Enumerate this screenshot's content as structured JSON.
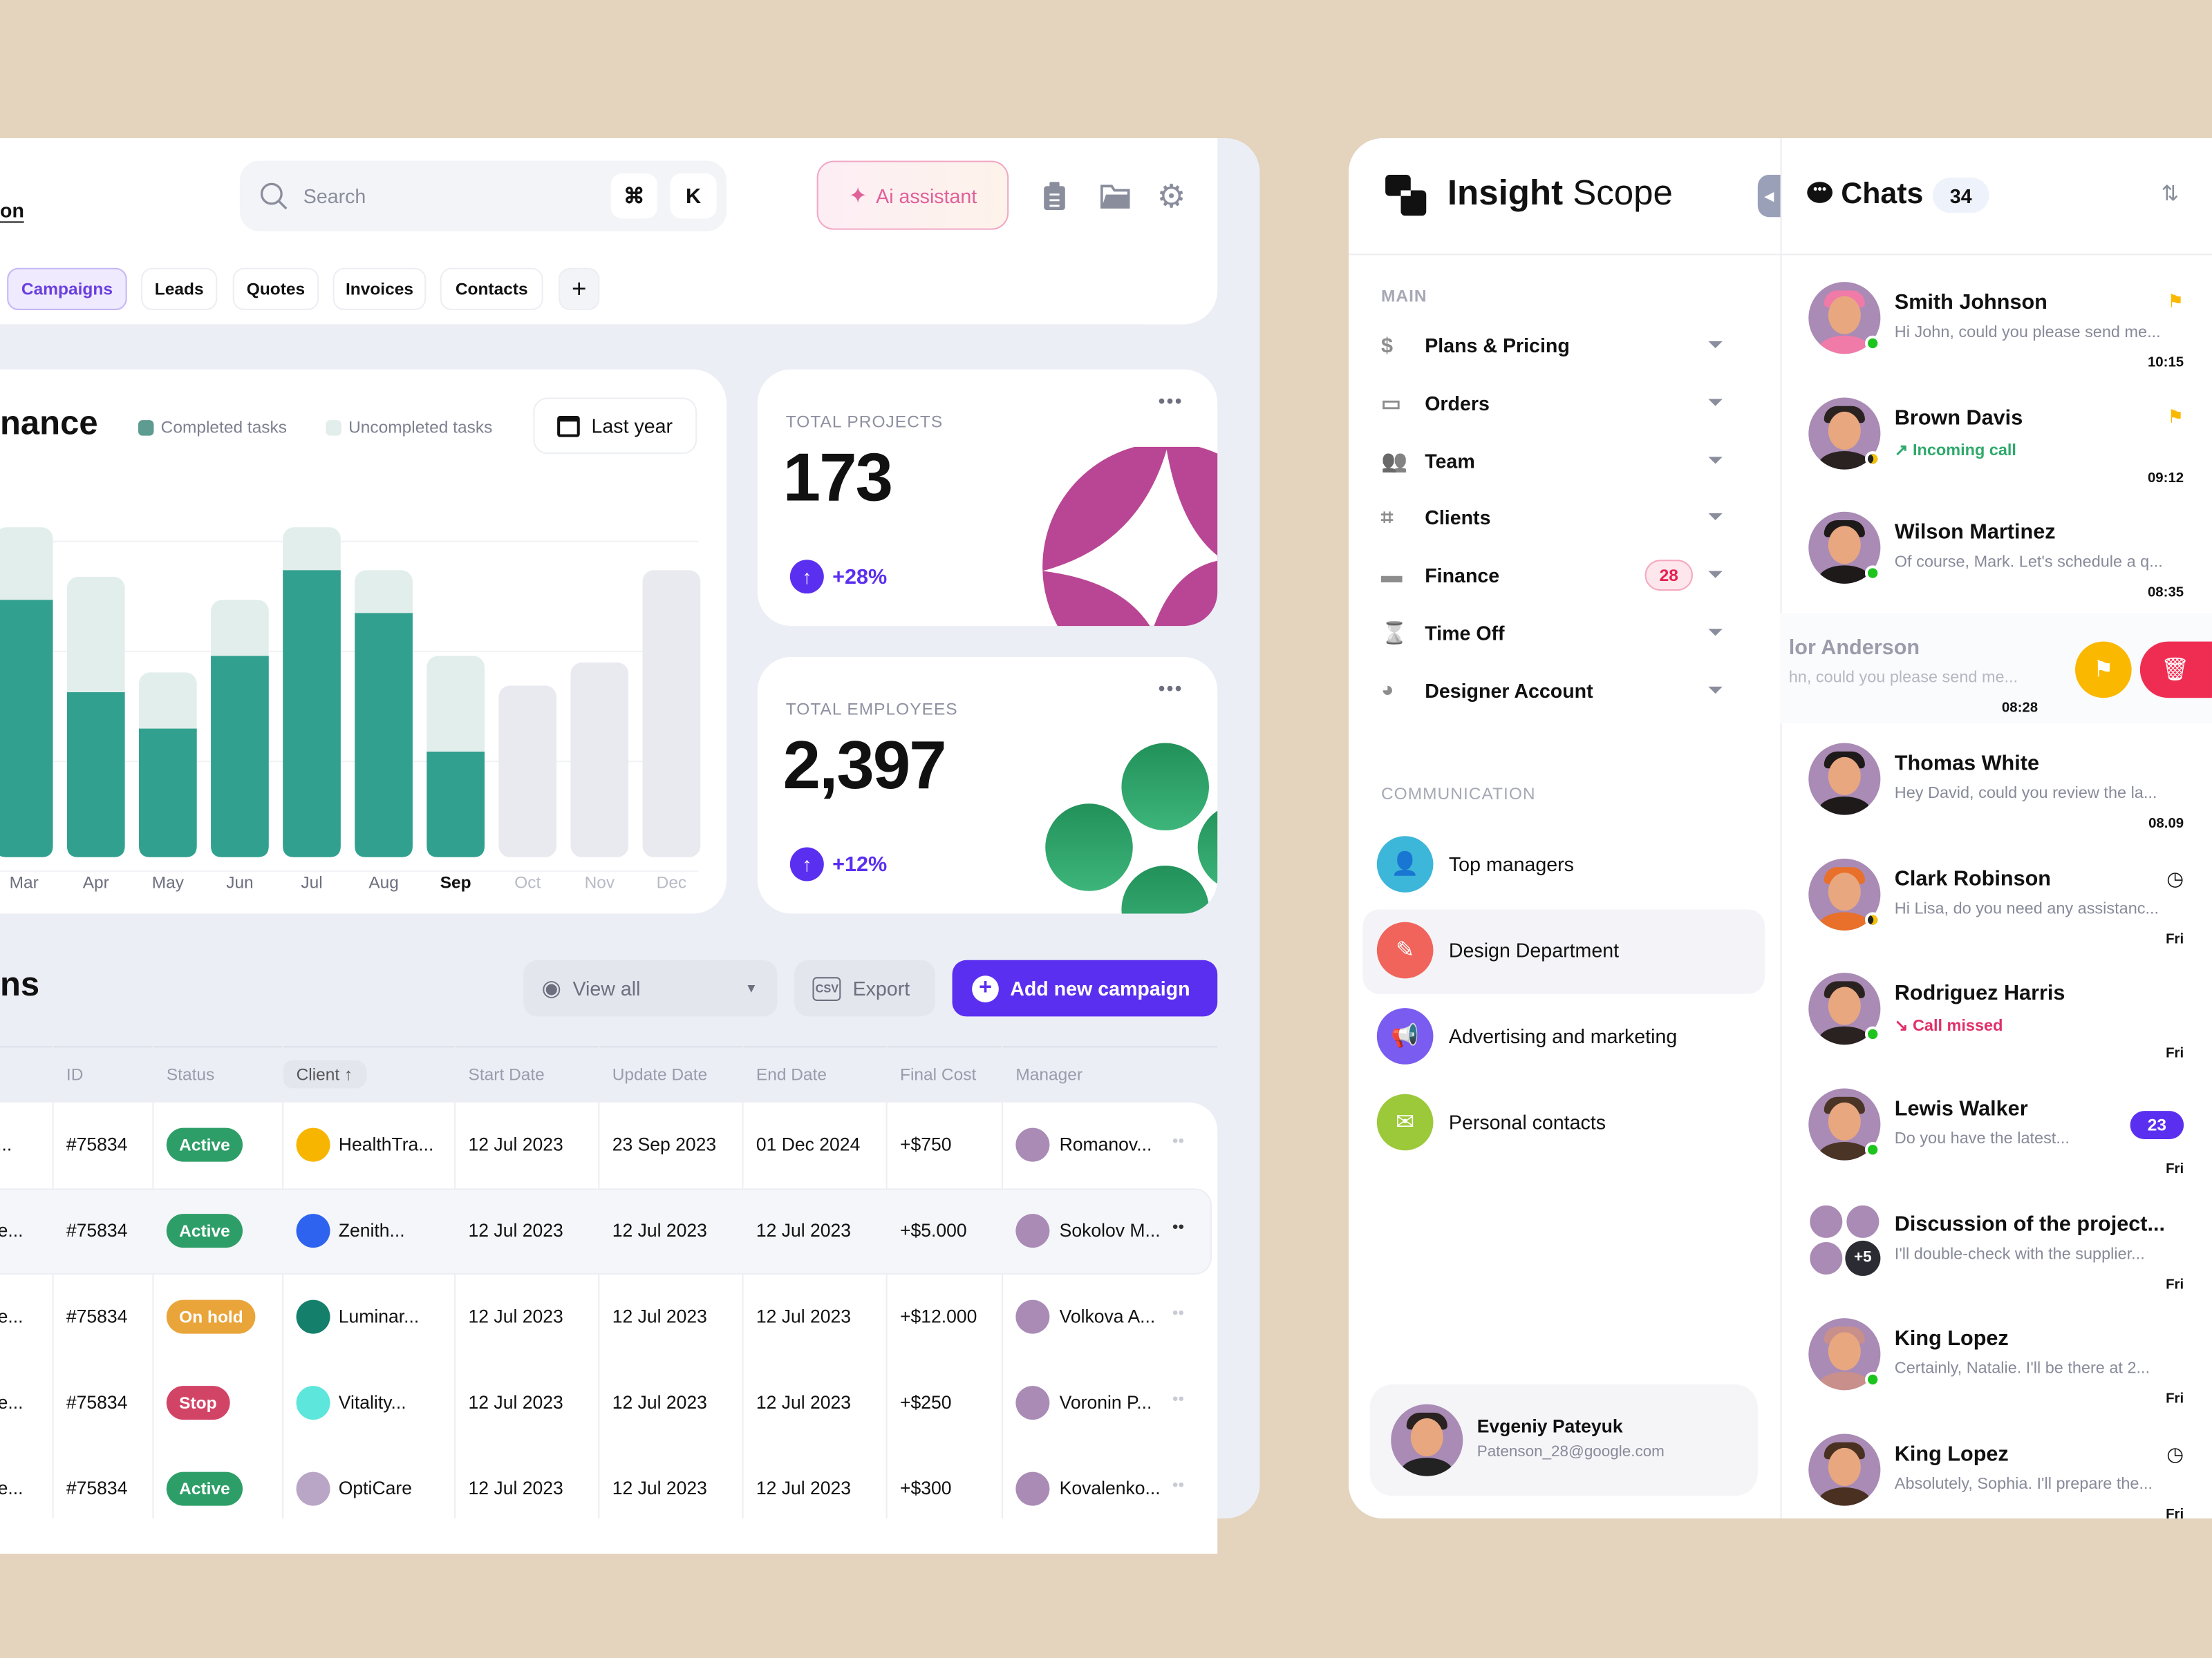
{
  "header": {
    "partial_title": "on",
    "search_placeholder": "Search",
    "shortcut_keys": [
      "⌘",
      "K"
    ],
    "ai_button": "Ai assistant",
    "icons": [
      "clipboard-icon",
      "folder-icon",
      "gear-icon"
    ]
  },
  "tabs": [
    {
      "label": "Campaigns",
      "active": true
    },
    {
      "label": "Leads"
    },
    {
      "label": "Quotes"
    },
    {
      "label": "Invoices"
    },
    {
      "label": "Contacts"
    },
    {
      "label": "+"
    }
  ],
  "performance": {
    "title_partial": "nance",
    "legend": [
      "Completed tasks",
      "Uncompleted tasks"
    ],
    "period_button": "Last year",
    "colors": {
      "completed": "#31a08f",
      "uncompleted": "#e2eeeb",
      "future": "#e9eaef"
    }
  },
  "chart_data": {
    "type": "bar",
    "stacked": true,
    "categories": [
      "Mar",
      "Apr",
      "May",
      "Jun",
      "Jul",
      "Aug",
      "Sep",
      "Oct",
      "Nov",
      "Dec"
    ],
    "highlighted": "Sep",
    "series": [
      {
        "name": "Completed tasks",
        "values": [
          78,
          50,
          39,
          61,
          87,
          74,
          32,
          0,
          0,
          0
        ]
      },
      {
        "name": "Uncompleted tasks",
        "values": [
          22,
          35,
          17,
          17,
          13,
          13,
          29,
          52,
          59,
          87
        ]
      }
    ],
    "ylim": [
      0,
      100
    ],
    "grid": true,
    "legend": "top"
  },
  "stats": [
    {
      "label": "TOTAL PROJECTS",
      "value": "173",
      "change": "+28%"
    },
    {
      "label": "TOTAL EMPLOYEES",
      "value": "2,397",
      "change": "+12%"
    }
  ],
  "campaigns": {
    "title_partial": "ns",
    "view_all": "View all",
    "export": "Export",
    "add": "Add new campaign",
    "columns": [
      "ID",
      "Status",
      "Client ↑",
      "Start Date",
      "Update Date",
      "End Date",
      "Final Cost",
      "Manager"
    ],
    "rows": [
      {
        "name": "r...",
        "id": "#75834",
        "status": "Active",
        "status_color": "#2e9e68",
        "client": "HealthTra...",
        "client_color": "#f7b500",
        "start": "12 Jul 2023",
        "update": "23 Sep 2023",
        "end": "01 Dec 2024",
        "cost": "+$750",
        "manager": "Romanov..."
      },
      {
        "name": "re...",
        "id": "#75834",
        "status": "Active",
        "status_color": "#2e9e68",
        "client": "Zenith...",
        "client_color": "#2e63f0",
        "start": "12 Jul 2023",
        "update": "12 Jul 2023",
        "end": "12 Jul 2023",
        "cost": "+$5.000",
        "manager": "Sokolov M..."
      },
      {
        "name": "re...",
        "id": "#75834",
        "status": "On hold",
        "status_color": "#e9a53a",
        "client": "Luminar...",
        "client_color": "#14806c",
        "start": "12 Jul 2023",
        "update": "12 Jul 2023",
        "end": "12 Jul 2023",
        "cost": "+$12.000",
        "manager": "Volkova A..."
      },
      {
        "name": "re...",
        "id": "#75834",
        "status": "Stop",
        "status_color": "#d24466",
        "client": "Vitality...",
        "client_color": "#5de6dc",
        "start": "12 Jul 2023",
        "update": "12 Jul 2023",
        "end": "12 Jul 2023",
        "cost": "+$250",
        "manager": "Voronin P..."
      },
      {
        "name": "re...",
        "id": "#75834",
        "status": "Active",
        "status_color": "#2e9e68",
        "client": "OptiCare",
        "client_color": "#b9a5c5",
        "start": "12 Jul 2023",
        "update": "12 Jul 2023",
        "end": "12 Jul 2023",
        "cost": "+$300",
        "manager": "Kovalenko..."
      }
    ]
  },
  "sidebar": {
    "brand_bold": "Insight",
    "brand_light": "Scope",
    "main_label": "MAIN",
    "items": [
      {
        "label": "Plans & Pricing",
        "icon": "coins-icon"
      },
      {
        "label": "Orders",
        "icon": "orders-icon"
      },
      {
        "label": "Team",
        "icon": "team-icon"
      },
      {
        "label": "Clients",
        "icon": "clients-icon"
      },
      {
        "label": "Finance",
        "icon": "wallet-icon",
        "badge": "28"
      },
      {
        "label": "Time Off",
        "icon": "hourglass-icon"
      },
      {
        "label": "Designer Account",
        "icon": "palette-icon"
      }
    ],
    "comm_label": "COMMUNICATION",
    "channels": [
      {
        "label": "Top managers",
        "color": "#3cb6d9"
      },
      {
        "label": "Design Department",
        "color": "#f0645c",
        "active": true
      },
      {
        "label": "Advertising and marketing",
        "color": "#7a5cf0"
      },
      {
        "label": "Personal contacts",
        "color": "#9cc93a"
      }
    ],
    "profile": {
      "name": "Evgeniy Pateyuk",
      "email": "Patenson_28@google.com"
    }
  },
  "chats": {
    "title": "Chats",
    "count": "34",
    "items": [
      {
        "name": "Smith Johnson",
        "msg": "Hi John, could you please send me...",
        "time": "10:15",
        "flag": true,
        "status": "online",
        "hair": "#f07aa8"
      },
      {
        "name": "Brown Davis",
        "msg": "↗ Incoming call",
        "msg_color": "#2ea96b",
        "time": "09:12",
        "flag": true,
        "status": "away",
        "hair": "#2a2220"
      },
      {
        "name": "Wilson Martinez",
        "msg": "Of course, Mark. Let's schedule a q...",
        "time": "08:35",
        "status": "online",
        "hair": "#1e1a1a"
      },
      {
        "name": "lor Anderson",
        "msg": "hn, could you please send me...",
        "time": "08:28",
        "swiped": true
      },
      {
        "name": "Thomas White",
        "msg": "Hey David, could you review the la...",
        "time": "08.09",
        "hair": "#1e1a1a"
      },
      {
        "name": "Clark Robinson",
        "msg": "Hi Lisa, do you need any assistanc...",
        "time": "Fri",
        "timer": true,
        "status": "away",
        "hair": "#e8702a"
      },
      {
        "name": "Rodriguez Harris",
        "msg": "↘ Call missed",
        "msg_color": "#e0306a",
        "time": "Fri",
        "status": "online",
        "hair": "#2a2220"
      },
      {
        "name": "Lewis Walker",
        "msg": "Do you have the latest...",
        "time": "Fri",
        "badge": "23",
        "status": "online",
        "hair": "#4a3426"
      },
      {
        "name": "Discussion of the project...",
        "msg": "I'll double-check with the supplier...",
        "time": "Fri",
        "group": "+5"
      },
      {
        "name": "King Lopez",
        "msg": "Certainly, Natalie. I'll be there at 2...",
        "time": "Fri",
        "status": "online",
        "hair": "#c98f8a"
      },
      {
        "name": "King Lopez",
        "msg": "Absolutely, Sophia. I'll prepare the...",
        "time": "Fri",
        "timer": true,
        "hair": "#4a3020"
      }
    ]
  }
}
